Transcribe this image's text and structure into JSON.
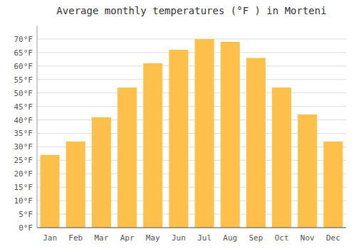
{
  "chart_data": {
    "type": "bar",
    "title": "Average monthly temperatures (°F ) in Morteni",
    "categories": [
      "Jan",
      "Feb",
      "Mar",
      "Apr",
      "May",
      "Jun",
      "Jul",
      "Aug",
      "Sep",
      "Oct",
      "Nov",
      "Dec"
    ],
    "values": [
      27,
      32,
      41,
      52,
      61,
      66,
      70,
      69,
      63,
      52,
      42,
      32
    ],
    "color": "#FDC04A",
    "ylim": [
      0,
      75
    ],
    "yticks": [
      {
        "value": 0,
        "label": "0°F"
      },
      {
        "value": 5,
        "label": "5°F"
      },
      {
        "value": 10,
        "label": "10°F"
      },
      {
        "value": 15,
        "label": "15°F"
      },
      {
        "value": 20,
        "label": "20°F"
      },
      {
        "value": 25,
        "label": "25°F"
      },
      {
        "value": 30,
        "label": "30°F"
      },
      {
        "value": 35,
        "label": "35°F"
      },
      {
        "value": 40,
        "label": "40°F"
      },
      {
        "value": 45,
        "label": "45°F"
      },
      {
        "value": 50,
        "label": "50°F"
      },
      {
        "value": 55,
        "label": "55°F"
      },
      {
        "value": 60,
        "label": "60°F"
      },
      {
        "value": 65,
        "label": "65°F"
      },
      {
        "value": 70,
        "label": "70°F"
      }
    ],
    "grid": true
  }
}
